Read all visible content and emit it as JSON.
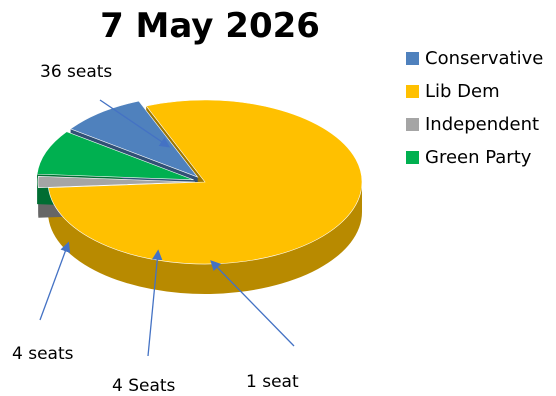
{
  "chart_data": {
    "type": "pie",
    "title": "7 May 2026",
    "categories": [
      "Conservative",
      "Lib Dem",
      "Independent",
      "Green Party"
    ],
    "values": [
      4,
      36,
      1,
      4
    ],
    "colors": [
      "#4F81BD",
      "#FFC000",
      "#A5A5A5",
      "#00B050"
    ],
    "legend_position": "right",
    "data_labels": [
      "4 seats",
      "36 seats",
      "1 seat",
      "4 Seats"
    ],
    "style": "3d-exploded"
  }
}
